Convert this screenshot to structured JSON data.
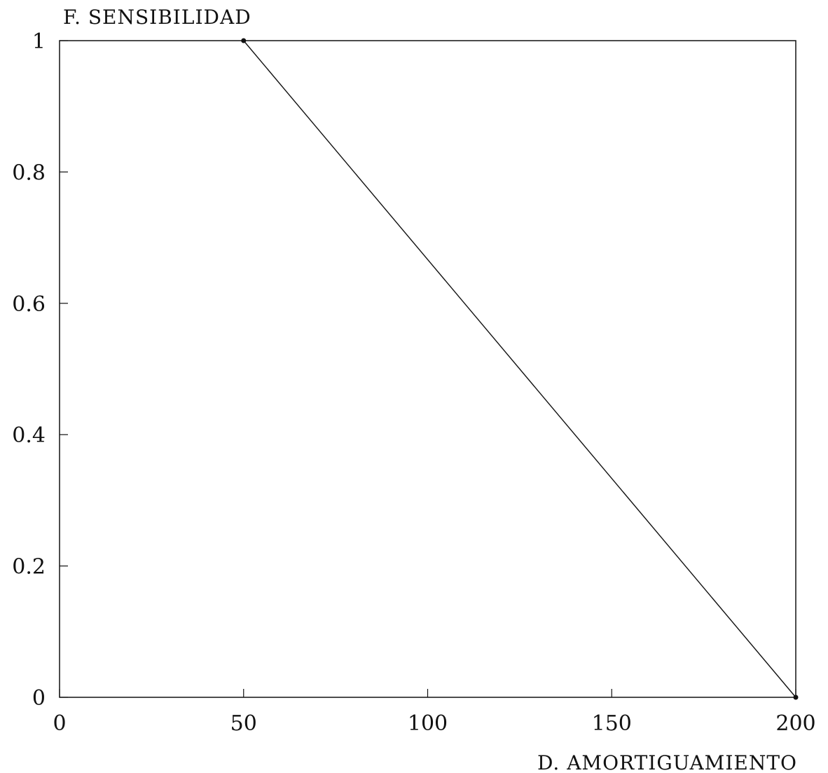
{
  "chart_data": {
    "type": "line",
    "title": "",
    "ylabel": "F. SENSIBILIDAD",
    "xlabel": "D. AMORTIGUAMIENTO",
    "xlim": [
      0,
      200
    ],
    "ylim": [
      0,
      1
    ],
    "xticks": [
      0,
      50,
      100,
      150,
      200
    ],
    "yticks": [
      0,
      0.2,
      0.4,
      0.6,
      0.8,
      1
    ],
    "xtick_labels": [
      "0",
      "50",
      "100",
      "150",
      "200"
    ],
    "ytick_labels": [
      "0",
      "0.2",
      "0.4",
      "0.6",
      "0.8",
      "1"
    ],
    "grid": false,
    "legend": "none",
    "series": [
      {
        "x": [
          50,
          200
        ],
        "y": [
          1,
          0
        ]
      }
    ]
  }
}
